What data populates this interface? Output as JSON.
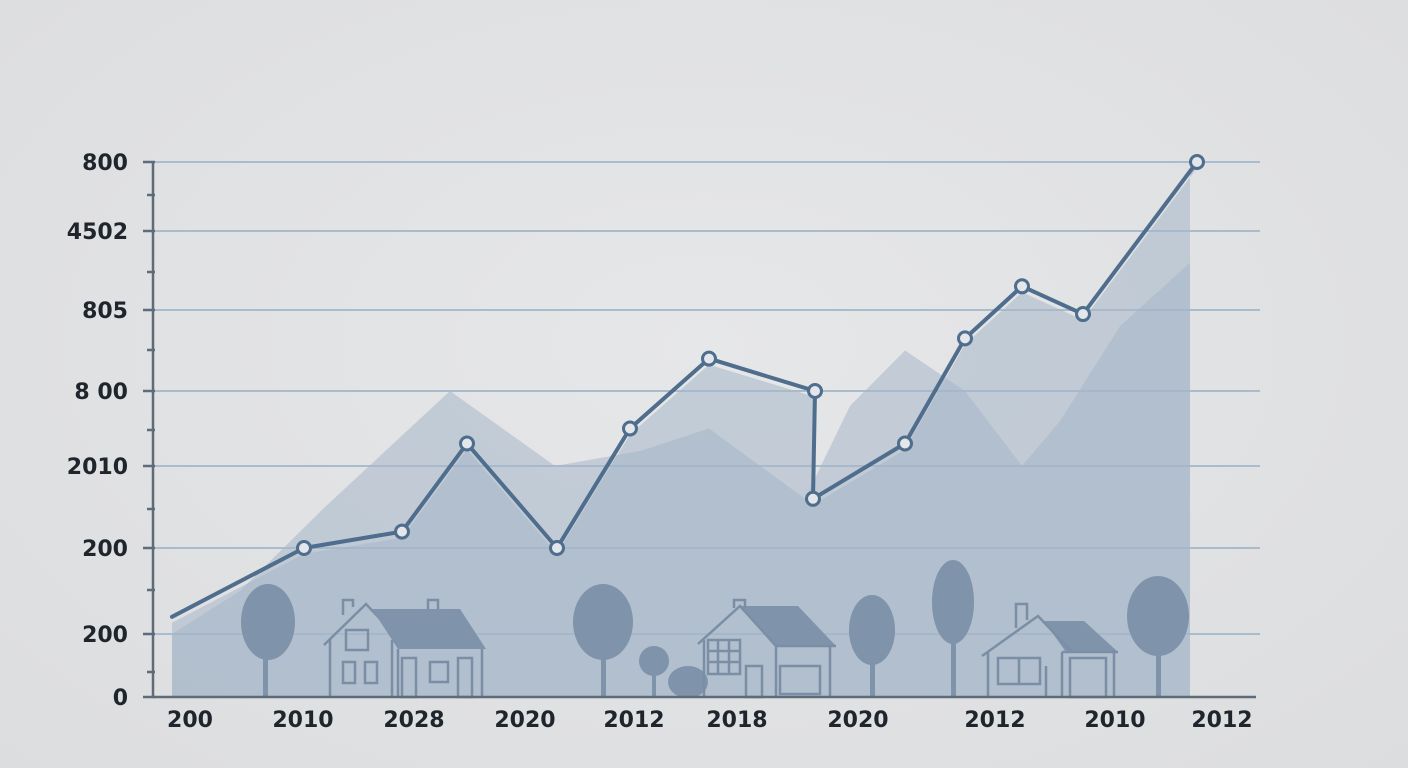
{
  "chart_data": {
    "type": "line",
    "title": "",
    "xlabel": "",
    "ylabel": "",
    "grid": true,
    "y_tick_labels": [
      "0",
      "200",
      "200",
      "2010",
      "8 00",
      "805",
      "4502",
      "800"
    ],
    "x_tick_labels": [
      "200",
      "2010",
      "2028",
      "2020",
      "2012",
      "2018",
      "2020",
      "2012",
      "2010",
      "2012"
    ],
    "series": [
      {
        "values": [
          1.2,
          2.0,
          2.2,
          3.3,
          2.0,
          3.5,
          4.4,
          4.0,
          2.6,
          3.3,
          4.65,
          5.3,
          4.95,
          7.0
        ]
      }
    ],
    "background_area": [
      1.0,
      1.5,
      2.5,
      4.0,
      3.0,
      3.2,
      3.5,
      2.6,
      3.8,
      4.5,
      4.0,
      3.0,
      3.6,
      4.8,
      5.6,
      7.3
    ],
    "colors": {
      "line": "#4f6d8c",
      "area": "#a6b6c8",
      "grid": "#a9bccd",
      "axis": "#5e6b78"
    }
  }
}
